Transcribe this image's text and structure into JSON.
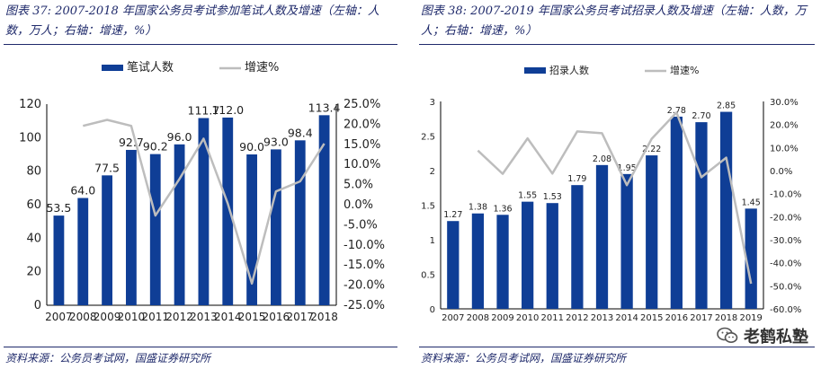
{
  "left": {
    "title_line1": "图表 37: 2007-2018 年国家公务员考试参加笔试人数及增速（左轴：人",
    "title_line2": "数，万人；右轴：增速，%）",
    "source": "资料来源：公务员考试网，国盛证券研究所",
    "chart_data": {
      "type": "bar",
      "categories": [
        "2007",
        "2008",
        "2009",
        "2010",
        "2011",
        "2012",
        "2013",
        "2014",
        "2015",
        "2016",
        "2017",
        "2018"
      ],
      "series": [
        {
          "name": "笔试人数",
          "type": "bar",
          "axis": "left",
          "color": "#0f3e96",
          "values": [
            53.5,
            64.0,
            77.5,
            92.7,
            90.2,
            96.0,
            111.7,
            112.0,
            90.0,
            93.0,
            98.4,
            113.4
          ],
          "labels": [
            "53.5",
            "64.0",
            "77.5",
            "92.7",
            "90.2",
            "96.0",
            "111.7",
            "112.0",
            "90.0",
            "93.0",
            "98.4",
            "113.4"
          ]
        },
        {
          "name": "增速%",
          "type": "line",
          "axis": "right",
          "color": "#bdbdbd",
          "values": [
            null,
            19.6,
            21.1,
            19.6,
            -2.7,
            6.4,
            16.4,
            0.3,
            -19.6,
            3.3,
            5.8,
            15.2
          ]
        }
      ],
      "y_left": {
        "min": 0,
        "max": 120,
        "ticks": [
          0,
          20,
          40,
          60,
          80,
          100,
          120
        ]
      },
      "y_right": {
        "min": -25,
        "max": 25,
        "ticks": [
          "-25.0%",
          "-20.0%",
          "-15.0%",
          "-10.0%",
          "-5.0%",
          "0.0%",
          "5.0%",
          "10.0%",
          "15.0%",
          "20.0%",
          "25.0%"
        ]
      },
      "legend_position": "top-center"
    }
  },
  "right": {
    "title_line1": "图表 38: 2007-2019 年国家公务员考试招录人数及增速（左轴：人数，万",
    "title_line2": "人；右轴：增速，%）",
    "source": "资料来源：公务员考试网，国盛证券研究所",
    "chart_data": {
      "type": "bar",
      "categories": [
        "2007",
        "2008",
        "2009",
        "2010",
        "2011",
        "2012",
        "2013",
        "2014",
        "2015",
        "2016",
        "2017",
        "2018",
        "2019"
      ],
      "series": [
        {
          "name": "招录人数",
          "type": "bar",
          "axis": "left",
          "color": "#0f3e96",
          "values": [
            1.27,
            1.38,
            1.36,
            1.55,
            1.53,
            1.79,
            2.08,
            1.95,
            2.22,
            2.78,
            2.7,
            2.85,
            1.45
          ],
          "labels": [
            "1.27",
            "1.38",
            "1.36",
            "1.55",
            "1.53",
            "1.79",
            "2.08",
            "1.95",
            "2.22",
            "2.78",
            "2.70",
            "2.85",
            "1.45"
          ]
        },
        {
          "name": "增速%",
          "type": "line",
          "axis": "right",
          "color": "#bdbdbd",
          "values": [
            null,
            8.7,
            -1.4,
            14.0,
            -1.3,
            17.0,
            16.2,
            -6.3,
            13.8,
            25.2,
            -2.9,
            5.6,
            -49.1
          ]
        }
      ],
      "y_left": {
        "min": 0,
        "max": 3,
        "ticks": [
          "0",
          "0.5",
          "1",
          "1.5",
          "2",
          "2.5",
          "3"
        ]
      },
      "y_right": {
        "min": -60,
        "max": 30,
        "ticks": [
          "-60.0%",
          "-50.0%",
          "-40.0%",
          "-30.0%",
          "-20.0%",
          "-10.0%",
          "0.0%",
          "10.0%",
          "20.0%",
          "30.0%"
        ]
      },
      "legend_position": "top-center"
    }
  },
  "watermark": {
    "text": "老鹤私塾",
    "icon": "wechat-icon"
  }
}
